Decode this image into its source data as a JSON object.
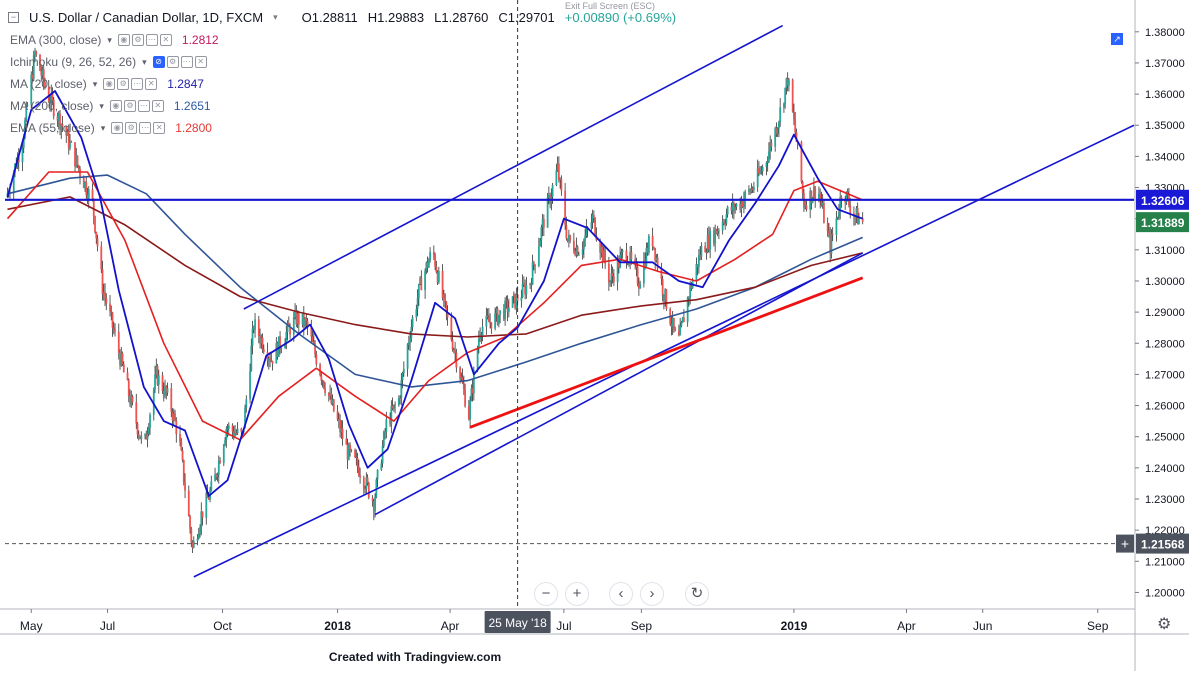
{
  "header": {
    "symbol": "U.S. Dollar / Canadian Dollar, 1D, FXCM",
    "open": "O1.28811",
    "high": "H1.29883",
    "low": "L1.28760",
    "close": "C1.29701",
    "change": "+0.00890 (+0.69%)",
    "exit_fullscreen": "Exit Full Screen (ESC)"
  },
  "indicators": [
    {
      "label": "EMA (300, close)",
      "value": "1.2812",
      "color": "#c2185b"
    },
    {
      "label": "Ichimoku (9, 26, 52, 26)",
      "value": "",
      "color": "#5d606b"
    },
    {
      "label": "MA (20, close)",
      "value": "1.2847",
      "color": "#1e22aa"
    },
    {
      "label": "MA (200, close)",
      "value": "1.2651",
      "color": "#2e5aa0"
    },
    {
      "label": "EMA (55, close)",
      "value": "1.2800",
      "color": "#e53935"
    }
  ],
  "price_labels": {
    "resistance": "1.32606",
    "last": "1.31889",
    "crosshair": "1.21568"
  },
  "crosshair_date": "25 May '18",
  "footer": "Created with Tradingview.com",
  "colors": {
    "up_candle": "#26a69a",
    "down_candle": "#ef5350",
    "trendline": "#1515d0",
    "support_red": "#ee1111",
    "ma20": "#1212cc",
    "ema55": "#e52020",
    "ema300": "#8b1a1a",
    "ma200": "#2f5597"
  },
  "chart_data": {
    "type": "candlestick",
    "y_axis": {
      "range": [
        1.195,
        1.387
      ],
      "ticks": [
        "1.38000",
        "1.37000",
        "1.36000",
        "1.35000",
        "1.34000",
        "1.33000",
        "1.32000",
        "1.31000",
        "1.30000",
        "1.29000",
        "1.28000",
        "1.27000",
        "1.26000",
        "1.25000",
        "1.24000",
        "1.23000",
        "1.22000",
        "1.21000",
        "1.20000"
      ]
    },
    "x_axis": {
      "labels": [
        {
          "date": "2017-05-01",
          "text": "May"
        },
        {
          "date": "2017-07-01",
          "text": "Jul"
        },
        {
          "date": "2017-10-01",
          "text": "Oct"
        },
        {
          "date": "2018-01-01",
          "text": "2018"
        },
        {
          "date": "2018-04-01",
          "text": "Apr"
        },
        {
          "date": "2018-07-01",
          "text": "Jul"
        },
        {
          "date": "2018-09-01",
          "text": "Sep"
        },
        {
          "date": "2019-01-01",
          "text": "2019"
        },
        {
          "date": "2019-04-01",
          "text": "Apr"
        },
        {
          "date": "2019-06-01",
          "text": "Jun"
        },
        {
          "date": "2019-09-01",
          "text": "Sep"
        }
      ],
      "range": [
        "2017-04-10",
        "2019-09-30"
      ]
    },
    "price_path": [
      [
        "2017-04-12",
        1.327
      ],
      [
        "2017-04-25",
        1.345
      ],
      [
        "2017-05-05",
        1.373
      ],
      [
        "2017-05-15",
        1.36
      ],
      [
        "2017-05-28",
        1.349
      ],
      [
        "2017-06-10",
        1.335
      ],
      [
        "2017-06-20",
        1.325
      ],
      [
        "2017-06-28",
        1.298
      ],
      [
        "2017-07-10",
        1.279
      ],
      [
        "2017-07-20",
        1.262
      ],
      [
        "2017-07-31",
        1.246
      ],
      [
        "2017-08-10",
        1.27
      ],
      [
        "2017-08-20",
        1.262
      ],
      [
        "2017-08-28",
        1.25
      ],
      [
        "2017-09-08",
        1.214
      ],
      [
        "2017-09-15",
        1.225
      ],
      [
        "2017-09-25",
        1.235
      ],
      [
        "2017-10-05",
        1.253
      ],
      [
        "2017-10-18",
        1.25
      ],
      [
        "2017-10-27",
        1.286
      ],
      [
        "2017-11-10",
        1.275
      ],
      [
        "2017-11-20",
        1.282
      ],
      [
        "2017-11-30",
        1.288
      ],
      [
        "2017-12-08",
        1.286
      ],
      [
        "2017-12-20",
        1.27
      ],
      [
        "2018-01-01",
        1.256
      ],
      [
        "2018-01-10",
        1.245
      ],
      [
        "2018-01-19",
        1.24
      ],
      [
        "2018-01-31",
        1.229
      ],
      [
        "2018-02-10",
        1.254
      ],
      [
        "2018-02-20",
        1.262
      ],
      [
        "2018-03-01",
        1.284
      ],
      [
        "2018-03-10",
        1.3
      ],
      [
        "2018-03-19",
        1.31
      ],
      [
        "2018-03-30",
        1.289
      ],
      [
        "2018-04-10",
        1.27
      ],
      [
        "2018-04-17",
        1.257
      ],
      [
        "2018-04-26",
        1.285
      ],
      [
        "2018-05-08",
        1.288
      ],
      [
        "2018-05-25",
        1.294
      ],
      [
        "2018-06-05",
        1.3
      ],
      [
        "2018-06-15",
        1.318
      ],
      [
        "2018-06-27",
        1.336
      ],
      [
        "2018-07-05",
        1.313
      ],
      [
        "2018-07-15",
        1.31
      ],
      [
        "2018-07-25",
        1.32
      ],
      [
        "2018-08-08",
        1.3
      ],
      [
        "2018-08-20",
        1.31
      ],
      [
        "2018-08-31",
        1.3
      ],
      [
        "2018-09-10",
        1.315
      ],
      [
        "2018-09-20",
        1.296
      ],
      [
        "2018-10-01",
        1.279
      ],
      [
        "2018-10-10",
        1.296
      ],
      [
        "2018-10-20",
        1.31
      ],
      [
        "2018-10-30",
        1.315
      ],
      [
        "2018-11-10",
        1.322
      ],
      [
        "2018-11-20",
        1.325
      ],
      [
        "2018-11-30",
        1.33
      ],
      [
        "2018-12-10",
        1.338
      ],
      [
        "2018-12-20",
        1.351
      ],
      [
        "2018-12-28",
        1.365
      ],
      [
        "2019-01-04",
        1.345
      ],
      [
        "2019-01-10",
        1.325
      ],
      [
        "2019-01-21",
        1.33
      ],
      [
        "2019-01-31",
        1.311
      ],
      [
        "2019-02-05",
        1.32
      ],
      [
        "2019-02-10",
        1.33
      ],
      [
        "2019-02-18",
        1.322
      ],
      [
        "2019-02-25",
        1.319
      ]
    ],
    "ma20": [
      [
        "2017-04-12",
        1.327
      ],
      [
        "2017-05-01",
        1.355
      ],
      [
        "2017-05-20",
        1.361
      ],
      [
        "2017-06-10",
        1.346
      ],
      [
        "2017-06-25",
        1.327
      ],
      [
        "2017-07-10",
        1.297
      ],
      [
        "2017-07-30",
        1.266
      ],
      [
        "2017-08-15",
        1.255
      ],
      [
        "2017-09-01",
        1.252
      ],
      [
        "2017-09-20",
        1.231
      ],
      [
        "2017-10-05",
        1.236
      ],
      [
        "2017-10-20",
        1.255
      ],
      [
        "2017-11-05",
        1.276
      ],
      [
        "2017-11-25",
        1.281
      ],
      [
        "2017-12-10",
        1.286
      ],
      [
        "2017-12-25",
        1.275
      ],
      [
        "2018-01-10",
        1.254
      ],
      [
        "2018-01-25",
        1.24
      ],
      [
        "2018-02-10",
        1.246
      ],
      [
        "2018-03-01",
        1.268
      ],
      [
        "2018-03-20",
        1.293
      ],
      [
        "2018-04-05",
        1.288
      ],
      [
        "2018-04-20",
        1.27
      ],
      [
        "2018-05-10",
        1.28
      ],
      [
        "2018-05-25",
        1.285
      ],
      [
        "2018-06-15",
        1.3
      ],
      [
        "2018-07-01",
        1.32
      ],
      [
        "2018-07-20",
        1.317
      ],
      [
        "2018-08-15",
        1.306
      ],
      [
        "2018-09-10",
        1.306
      ],
      [
        "2018-10-01",
        1.3
      ],
      [
        "2018-10-20",
        1.298
      ],
      [
        "2018-11-10",
        1.313
      ],
      [
        "2018-12-01",
        1.325
      ],
      [
        "2018-12-20",
        1.337
      ],
      [
        "2019-01-01",
        1.347
      ],
      [
        "2019-01-20",
        1.333
      ],
      [
        "2019-02-05",
        1.323
      ],
      [
        "2019-02-25",
        1.32
      ]
    ],
    "ema55": [
      [
        "2017-04-12",
        1.32
      ],
      [
        "2017-05-15",
        1.335
      ],
      [
        "2017-06-15",
        1.335
      ],
      [
        "2017-07-15",
        1.313
      ],
      [
        "2017-08-15",
        1.28
      ],
      [
        "2017-09-15",
        1.255
      ],
      [
        "2017-10-15",
        1.249
      ],
      [
        "2017-11-15",
        1.263
      ],
      [
        "2017-12-15",
        1.272
      ],
      [
        "2018-01-15",
        1.263
      ],
      [
        "2018-02-15",
        1.255
      ],
      [
        "2018-03-15",
        1.268
      ],
      [
        "2018-04-15",
        1.277
      ],
      [
        "2018-05-15",
        1.282
      ],
      [
        "2018-06-15",
        1.293
      ],
      [
        "2018-07-15",
        1.305
      ],
      [
        "2018-08-15",
        1.307
      ],
      [
        "2018-09-15",
        1.303
      ],
      [
        "2018-10-15",
        1.3
      ],
      [
        "2018-11-15",
        1.307
      ],
      [
        "2018-12-15",
        1.315
      ],
      [
        "2019-01-01",
        1.329
      ],
      [
        "2019-01-20",
        1.332
      ],
      [
        "2019-02-25",
        1.326
      ]
    ],
    "ema300": [
      [
        "2017-04-12",
        1.323
      ],
      [
        "2017-06-01",
        1.327
      ],
      [
        "2017-07-15",
        1.318
      ],
      [
        "2017-09-01",
        1.305
      ],
      [
        "2017-10-15",
        1.295
      ],
      [
        "2017-12-01",
        1.29
      ],
      [
        "2018-01-15",
        1.286
      ],
      [
        "2018-03-01",
        1.283
      ],
      [
        "2018-04-15",
        1.282
      ],
      [
        "2018-06-01",
        1.283
      ],
      [
        "2018-07-15",
        1.289
      ],
      [
        "2018-09-01",
        1.292
      ],
      [
        "2018-10-15",
        1.294
      ],
      [
        "2018-12-01",
        1.298
      ],
      [
        "2019-01-15",
        1.305
      ],
      [
        "2019-02-25",
        1.309
      ]
    ],
    "ma200": [
      [
        "2017-04-12",
        1.328
      ],
      [
        "2017-06-01",
        1.333
      ],
      [
        "2017-07-01",
        1.334
      ],
      [
        "2017-08-01",
        1.328
      ],
      [
        "2017-09-01",
        1.315
      ],
      [
        "2017-10-15",
        1.298
      ],
      [
        "2017-12-01",
        1.283
      ],
      [
        "2018-01-15",
        1.27
      ],
      [
        "2018-03-01",
        1.266
      ],
      [
        "2018-04-15",
        1.268
      ],
      [
        "2018-06-01",
        1.274
      ],
      [
        "2018-07-15",
        1.28
      ],
      [
        "2018-09-01",
        1.286
      ],
      [
        "2018-10-15",
        1.291
      ],
      [
        "2018-12-01",
        1.298
      ],
      [
        "2019-01-15",
        1.307
      ],
      [
        "2019-02-25",
        1.314
      ]
    ],
    "trendlines": [
      {
        "name": "channel-upper",
        "from": [
          "2017-10-18",
          1.291
        ],
        "to": [
          "2018-12-23",
          1.382
        ],
        "color": "#1515d0"
      },
      {
        "name": "steep-support",
        "from": [
          "2017-09-08",
          1.205
        ],
        "to": [
          "2019-09-30",
          1.35
        ],
        "color": "#1515d0"
      },
      {
        "name": "mid-support",
        "from": [
          "2018-01-31",
          1.225
        ],
        "to": [
          "2019-02-25",
          1.309
        ],
        "color": "#1515d0"
      },
      {
        "name": "red-support",
        "from": [
          "2018-04-17",
          1.253
        ],
        "to": [
          "2019-02-25",
          1.301
        ],
        "color": "#ee1111"
      }
    ],
    "horizontal_lines": [
      {
        "name": "resistance",
        "value": 1.32606,
        "color": "#1515d0",
        "style": "solid"
      },
      {
        "name": "crosshair-price",
        "value": 1.21568,
        "color": "#555555",
        "style": "dashed"
      }
    ],
    "vertical_lines": [
      {
        "name": "crosshair-date",
        "date": "2018-05-25",
        "color": "#333333",
        "style": "dashed"
      }
    ],
    "legend": "top-left",
    "grid": false
  }
}
